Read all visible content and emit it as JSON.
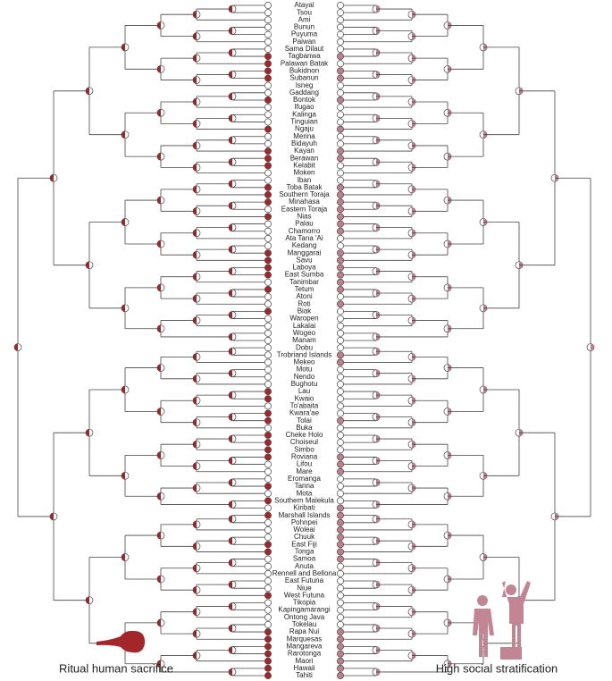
{
  "cultures": [
    "Atayal",
    "Tsou",
    "Ami",
    "Bunun",
    "Puyuma",
    "Paiwan",
    "Sama Dilaut",
    "Tagbanwa",
    "Palawan Batak",
    "Bukidnon",
    "Subanun",
    "Isneg",
    "Gaddang",
    "Bontok",
    "Ifugao",
    "Kalinga",
    "Tinguian",
    "Ngaju",
    "Merina",
    "Bidayuh",
    "Kayan",
    "Berawan",
    "Kelabit",
    "Moken",
    "Iban",
    "Toba Batak",
    "Southern Toraja",
    "Minahasa",
    "Eastern Toraja",
    "Nias",
    "Palau",
    "Chamorro",
    "Ata Tana 'Ai",
    "Kedang",
    "Manggarai",
    "Savu",
    "Laboya",
    "East Sumba",
    "Tanimbar",
    "Tetum",
    "Atoni",
    "Roti",
    "Biak",
    "Waropen",
    "Lakalai",
    "Wogeo",
    "Manam",
    "Dobu",
    "Trobriand Islands",
    "Mekeo",
    "Motu",
    "Nendo",
    "Bughotu",
    "Lau",
    "Kwaio",
    "To'abaita",
    "Kwara'ae",
    "Tolai",
    "Buka",
    "Cheke Holo",
    "Choiseul",
    "Simbo",
    "Roviana",
    "Lifou",
    "Mare",
    "Eromanga",
    "Tanna",
    "Mota",
    "Southern Malekula",
    "Kiribati",
    "Marshall Islands",
    "Pohnpei",
    "Woleai",
    "Chuuk",
    "East Fiji",
    "Tonga",
    "Samoa",
    "Anuta",
    "Rennell and Bellona",
    "East Futuna",
    "Niue",
    "West Futuna",
    "Tikopia",
    "Kapingamarangi",
    "Ontong Java",
    "Tokelau",
    "Rapa Nui",
    "Marquesas",
    "Mangareva",
    "Rarotonga",
    "Maori",
    "Hawaii",
    "Tahiti"
  ],
  "sacrifice": [
    0,
    0,
    0,
    0,
    0,
    0,
    0,
    1,
    1,
    1,
    1,
    0,
    0,
    1,
    0,
    0,
    0,
    1,
    0,
    0,
    1,
    1,
    1,
    0,
    0,
    1,
    1,
    1,
    0,
    1,
    0,
    0,
    0,
    0,
    1,
    1,
    1,
    1,
    0,
    1,
    0,
    0,
    1,
    0,
    0,
    0,
    0,
    0,
    0,
    0,
    0,
    0,
    0,
    1,
    1,
    0,
    1,
    1,
    0,
    1,
    1,
    1,
    1,
    0,
    0,
    0,
    1,
    0,
    1,
    0,
    1,
    0,
    0,
    0,
    1,
    1,
    0,
    0,
    0,
    0,
    0,
    1,
    0,
    0,
    0,
    0,
    1,
    1,
    1,
    1,
    1,
    1,
    1
  ],
  "stratification": [
    0,
    0,
    0,
    0,
    0,
    0,
    0,
    1,
    0,
    1,
    1,
    0,
    0,
    1,
    0,
    0,
    0,
    1,
    0,
    0,
    1,
    1,
    0,
    0,
    0,
    1,
    1,
    1,
    1,
    1,
    1,
    1,
    0,
    0,
    1,
    1,
    1,
    1,
    1,
    1,
    0,
    1,
    0,
    0,
    0,
    0,
    0,
    0,
    1,
    1,
    0,
    0,
    0,
    0,
    0,
    0,
    0,
    1,
    0,
    0,
    0,
    0,
    1,
    1,
    1,
    0,
    0,
    0,
    0,
    1,
    1,
    1,
    1,
    1,
    1,
    1,
    1,
    0,
    0,
    0,
    0,
    0,
    0,
    0,
    0,
    0,
    1,
    1,
    1,
    1,
    1,
    1,
    1
  ],
  "left_label": "Ritual human sacrifice",
  "right_label": "High social stratification"
}
